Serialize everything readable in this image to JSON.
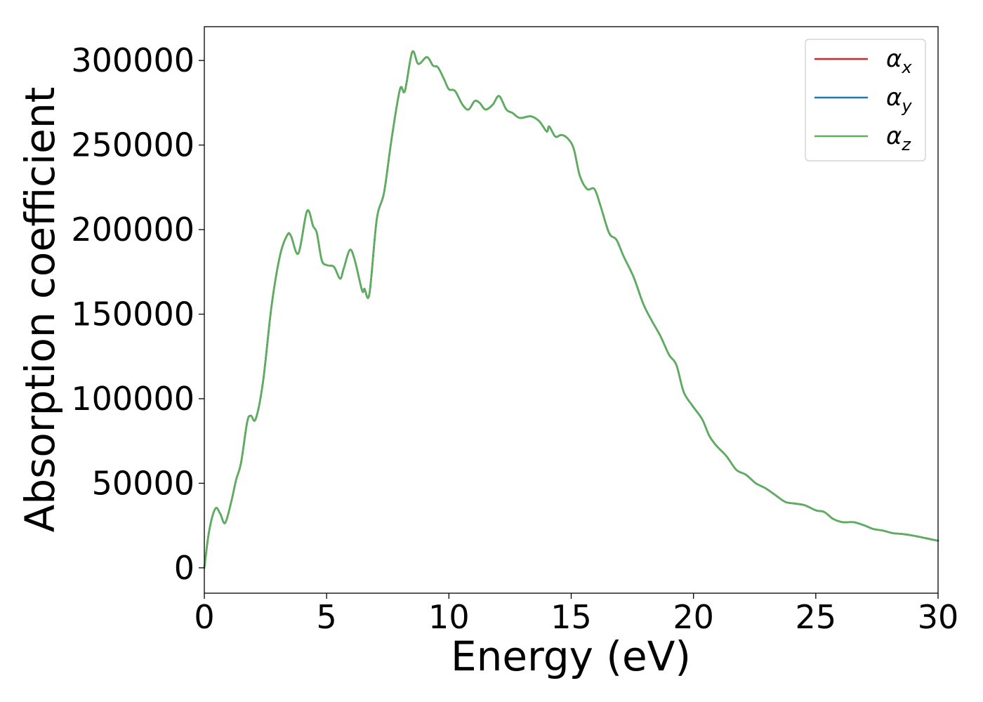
{
  "chart_data": {
    "type": "line",
    "xlabel": "Energy (eV)",
    "ylabel": "Absorption coefficient",
    "xlim": [
      0,
      30
    ],
    "ylim": [
      -15000,
      320000
    ],
    "xticks": [
      0,
      5,
      10,
      15,
      20,
      25,
      30
    ],
    "xtick_labels": [
      "0",
      "5",
      "10",
      "15",
      "20",
      "25",
      "30"
    ],
    "yticks": [
      0,
      50000,
      100000,
      150000,
      200000,
      250000,
      300000
    ],
    "ytick_labels": [
      "0",
      "50000",
      "100000",
      "150000",
      "200000",
      "250000",
      "300000"
    ],
    "grid": false,
    "legend_position": "top-right",
    "x": [
      0,
      0.2,
      0.45,
      0.65,
      0.85,
      1.1,
      1.3,
      1.5,
      1.75,
      1.9,
      2.1,
      2.4,
      2.75,
      3.1,
      3.4,
      3.55,
      3.85,
      4.2,
      4.45,
      4.6,
      4.8,
      5.0,
      5.3,
      5.55,
      5.7,
      5.95,
      6.15,
      6.45,
      6.55,
      6.75,
      7.05,
      7.35,
      7.65,
      8.0,
      8.2,
      8.5,
      8.75,
      9.1,
      9.35,
      9.55,
      9.8,
      10.0,
      10.25,
      10.55,
      10.8,
      11.05,
      11.25,
      11.5,
      11.8,
      12.05,
      12.35,
      12.6,
      12.9,
      13.35,
      13.7,
      14.0,
      14.1,
      14.35,
      14.6,
      14.85,
      15.1,
      15.35,
      15.65,
      15.95,
      16.2,
      16.55,
      16.85,
      17.15,
      17.55,
      17.95,
      18.3,
      18.65,
      19.0,
      19.3,
      19.6,
      19.95,
      20.35,
      20.65,
      20.95,
      21.35,
      21.75,
      22.15,
      22.55,
      22.95,
      23.35,
      23.75,
      24.15,
      24.55,
      25.0,
      25.35,
      25.7,
      26.1,
      26.55,
      27.0,
      27.35,
      27.75,
      28.15,
      28.55,
      29.0,
      29.5,
      30.0
    ],
    "series": [
      {
        "name": "α_x",
        "color": "#d62728",
        "values": [
          0,
          22000,
          35000,
          32000,
          26500,
          39000,
          52000,
          62000,
          86000,
          90000,
          88000,
          110000,
          155000,
          185000,
          197000,
          196000,
          186000,
          211000,
          202000,
          198000,
          182000,
          179000,
          178000,
          171000,
          177000,
          188000,
          182000,
          164000,
          165000,
          162000,
          206000,
          222000,
          253000,
          283000,
          282000,
          305000,
          298000,
          302000,
          297000,
          296000,
          289000,
          283000,
          282000,
          274000,
          271000,
          276000,
          275000,
          271000,
          274000,
          279000,
          271000,
          269000,
          266000,
          267000,
          264000,
          258000,
          261000,
          255000,
          256000,
          254000,
          248000,
          232000,
          224000,
          224000,
          214000,
          198000,
          194000,
          184000,
          172000,
          156000,
          146000,
          137000,
          126000,
          120000,
          104000,
          96000,
          88000,
          78000,
          72000,
          66000,
          58000,
          55000,
          50000,
          47000,
          43000,
          39000,
          38000,
          37000,
          34000,
          33000,
          29000,
          27000,
          27000,
          25000,
          23000,
          22000,
          20500,
          20000,
          19000,
          17500,
          16000
        ]
      },
      {
        "name": "α_y",
        "color": "#1f77b4",
        "values": [
          0,
          22000,
          35000,
          32000,
          26500,
          39000,
          52000,
          62000,
          86000,
          90000,
          88000,
          110000,
          155000,
          185000,
          197000,
          196000,
          186000,
          211000,
          202000,
          198000,
          182000,
          179000,
          178000,
          171000,
          177000,
          188000,
          182000,
          164000,
          165000,
          162000,
          206000,
          222000,
          253000,
          283000,
          282000,
          305000,
          298000,
          302000,
          297000,
          296000,
          289000,
          283000,
          282000,
          274000,
          271000,
          276000,
          275000,
          271000,
          274000,
          279000,
          271000,
          269000,
          266000,
          267000,
          264000,
          258000,
          261000,
          255000,
          256000,
          254000,
          248000,
          232000,
          224000,
          224000,
          214000,
          198000,
          194000,
          184000,
          172000,
          156000,
          146000,
          137000,
          126000,
          120000,
          104000,
          96000,
          88000,
          78000,
          72000,
          66000,
          58000,
          55000,
          50000,
          47000,
          43000,
          39000,
          38000,
          37000,
          34000,
          33000,
          29000,
          27000,
          27000,
          25000,
          23000,
          22000,
          20500,
          20000,
          19000,
          17500,
          16000
        ]
      },
      {
        "name": "α_z",
        "color": "#5cb05c",
        "values": [
          0,
          22000,
          35000,
          32000,
          26500,
          39000,
          52000,
          62000,
          86000,
          90000,
          88000,
          110000,
          155000,
          185000,
          197000,
          196000,
          186000,
          211000,
          202000,
          198000,
          182000,
          179000,
          178000,
          171000,
          177000,
          188000,
          182000,
          164000,
          165000,
          162000,
          206000,
          222000,
          253000,
          283000,
          282000,
          305000,
          298000,
          302000,
          297000,
          296000,
          289000,
          283000,
          282000,
          274000,
          271000,
          276000,
          275000,
          271000,
          274000,
          279000,
          271000,
          269000,
          266000,
          267000,
          264000,
          258000,
          261000,
          255000,
          256000,
          254000,
          248000,
          232000,
          224000,
          224000,
          214000,
          198000,
          194000,
          184000,
          172000,
          156000,
          146000,
          137000,
          126000,
          120000,
          104000,
          96000,
          88000,
          78000,
          72000,
          66000,
          58000,
          55000,
          50000,
          47000,
          43000,
          39000,
          38000,
          37000,
          34000,
          33000,
          29000,
          27000,
          27000,
          25000,
          23000,
          22000,
          20500,
          20000,
          19000,
          17500,
          16000
        ]
      }
    ]
  },
  "legend": {
    "entries": [
      {
        "symbol": "α",
        "subscript": "x"
      },
      {
        "symbol": "α",
        "subscript": "y"
      },
      {
        "symbol": "α",
        "subscript": "z"
      }
    ]
  }
}
